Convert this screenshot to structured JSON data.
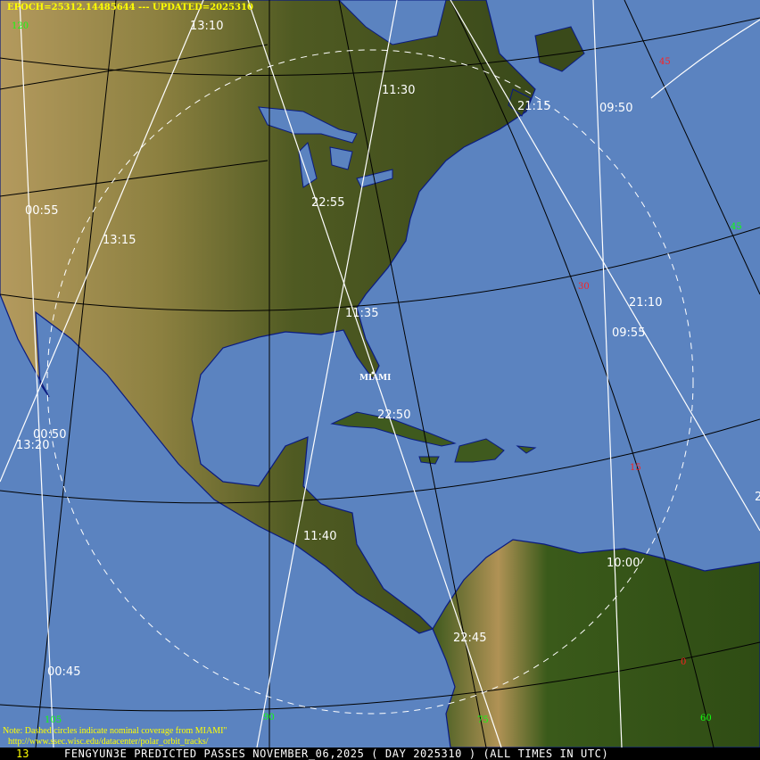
{
  "header": {
    "epoch_text": "EPOCH=25312.14485644 --- UPDATED=2025310"
  },
  "footer": {
    "frame_number": "13",
    "title": "FENGYUN3E PREDICTED PASSES NOVEMBER_06,2025 ( DAY 2025310 ) (ALL TIMES IN UTC)",
    "note": "Note: Dashed circles indicate nominal coverage from MIAMI\"",
    "url": "http://www.ssec.wisc.edu/datacenter/polar_orbit_tracks/"
  },
  "station": {
    "name": "MIAMI"
  },
  "pass_times": [
    "13:10",
    "11:30",
    "21:15",
    "09:50",
    "22:55",
    "00:55",
    "13:15",
    "21:10",
    "11:35",
    "09:55",
    "22:50",
    "00:50",
    "13:20",
    "11:40",
    "10:00",
    "22:45",
    "00:45",
    "2"
  ],
  "latitude_labels": [
    "45",
    "30",
    "15",
    "0"
  ],
  "longitude_labels": [
    "120",
    "105",
    "90",
    "75",
    "60",
    "45"
  ],
  "colors": {
    "ocean": "#5b83c0",
    "track": "#ffffff",
    "coverage": "#ffffff",
    "latitude_label": "#ff2020",
    "longitude_label": "#10ff10",
    "header_text": "#ffff00"
  }
}
